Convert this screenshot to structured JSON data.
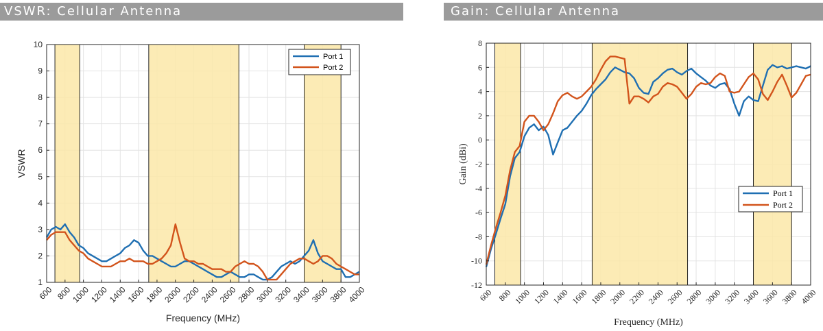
{
  "chart_data": [
    {
      "type": "line",
      "title": "VSWR: Cellular Antenna",
      "xlabel": "Frequency (MHz)",
      "ylabel": "VSWR",
      "xlim": [
        600,
        4000
      ],
      "ylim": [
        1,
        10
      ],
      "xticks": [
        600,
        800,
        1000,
        1200,
        1400,
        1600,
        1800,
        2000,
        2200,
        2400,
        2600,
        2800,
        3000,
        3200,
        3400,
        3600,
        3800,
        4000
      ],
      "yticks": [
        1,
        2,
        3,
        4,
        5,
        6,
        7,
        8,
        9,
        10
      ],
      "grid": true,
      "legend_position": "top-right",
      "bands": [
        [
          690,
          960
        ],
        [
          1710,
          2690
        ],
        [
          3400,
          3800
        ]
      ],
      "band_color": "#fbe7a8",
      "series": [
        {
          "name": "Port 1",
          "color": "#1f6fb2",
          "x": [
            600,
            650,
            700,
            750,
            800,
            850,
            900,
            950,
            1000,
            1050,
            1100,
            1150,
            1200,
            1250,
            1300,
            1350,
            1400,
            1450,
            1500,
            1550,
            1600,
            1650,
            1700,
            1750,
            1800,
            1850,
            1900,
            1950,
            2000,
            2050,
            2100,
            2150,
            2200,
            2250,
            2300,
            2350,
            2400,
            2450,
            2500,
            2550,
            2600,
            2650,
            2700,
            2750,
            2800,
            2850,
            2900,
            2950,
            3000,
            3050,
            3100,
            3150,
            3200,
            3250,
            3300,
            3350,
            3400,
            3450,
            3500,
            3550,
            3600,
            3650,
            3700,
            3750,
            3800,
            3850,
            3900,
            3950,
            4000
          ],
          "y": [
            2.7,
            3.0,
            3.1,
            3.0,
            3.2,
            2.9,
            2.7,
            2.4,
            2.3,
            2.1,
            2.0,
            1.9,
            1.8,
            1.8,
            1.9,
            2.0,
            2.1,
            2.3,
            2.4,
            2.6,
            2.5,
            2.2,
            2.0,
            2.0,
            1.9,
            1.8,
            1.7,
            1.6,
            1.6,
            1.7,
            1.8,
            1.8,
            1.7,
            1.6,
            1.5,
            1.4,
            1.3,
            1.2,
            1.2,
            1.3,
            1.4,
            1.3,
            1.2,
            1.2,
            1.3,
            1.3,
            1.2,
            1.1,
            1.1,
            1.2,
            1.4,
            1.6,
            1.7,
            1.8,
            1.7,
            1.8,
            2.0,
            2.2,
            2.6,
            2.1,
            1.8,
            1.7,
            1.6,
            1.5,
            1.5,
            1.2,
            1.2,
            1.3,
            1.4
          ]
        },
        {
          "name": "Port 2",
          "color": "#d2541c",
          "x": [
            600,
            650,
            700,
            750,
            800,
            850,
            900,
            950,
            1000,
            1050,
            1100,
            1150,
            1200,
            1250,
            1300,
            1350,
            1400,
            1450,
            1500,
            1550,
            1600,
            1650,
            1700,
            1750,
            1800,
            1850,
            1900,
            1950,
            2000,
            2050,
            2100,
            2150,
            2200,
            2250,
            2300,
            2350,
            2400,
            2450,
            2500,
            2550,
            2600,
            2650,
            2700,
            2750,
            2800,
            2850,
            2900,
            2950,
            3000,
            3050,
            3100,
            3150,
            3200,
            3250,
            3300,
            3350,
            3400,
            3450,
            3500,
            3550,
            3600,
            3650,
            3700,
            3750,
            3800,
            3850,
            3900,
            3950,
            4000
          ],
          "y": [
            2.6,
            2.8,
            2.9,
            2.9,
            2.9,
            2.6,
            2.4,
            2.2,
            2.1,
            1.9,
            1.8,
            1.7,
            1.6,
            1.6,
            1.6,
            1.7,
            1.8,
            1.8,
            1.9,
            1.8,
            1.8,
            1.8,
            1.7,
            1.7,
            1.8,
            1.9,
            2.1,
            2.4,
            3.2,
            2.5,
            1.9,
            1.8,
            1.8,
            1.7,
            1.7,
            1.6,
            1.5,
            1.5,
            1.5,
            1.4,
            1.4,
            1.6,
            1.7,
            1.8,
            1.7,
            1.7,
            1.6,
            1.4,
            1.1,
            1.1,
            1.1,
            1.3,
            1.5,
            1.7,
            1.8,
            1.9,
            1.9,
            1.8,
            1.7,
            1.8,
            2.0,
            2.0,
            1.9,
            1.7,
            1.6,
            1.5,
            1.4,
            1.3,
            1.3
          ]
        }
      ]
    },
    {
      "type": "line",
      "title": "Gain: Cellular Antenna",
      "xlabel": "Frequency (MHz)",
      "ylabel": "Gain (dBi)",
      "xlim": [
        600,
        4000
      ],
      "ylim": [
        -12,
        8
      ],
      "xticks": [
        600,
        800,
        1000,
        1200,
        1400,
        1600,
        1800,
        2000,
        2200,
        2400,
        2600,
        2800,
        3000,
        3200,
        3400,
        3600,
        3800,
        4000
      ],
      "yticks": [
        -12,
        -10,
        -8,
        -6,
        -4,
        -2,
        0,
        2,
        4,
        6,
        8
      ],
      "grid": true,
      "legend_position": "center-right",
      "bands": [
        [
          690,
          960
        ],
        [
          1710,
          2710
        ],
        [
          3400,
          3800
        ]
      ],
      "band_color": "#fbe7a8",
      "series": [
        {
          "name": "Port 1",
          "color": "#1f6fb2",
          "x": [
            600,
            650,
            700,
            750,
            800,
            850,
            900,
            950,
            1000,
            1050,
            1100,
            1150,
            1200,
            1250,
            1300,
            1350,
            1400,
            1450,
            1500,
            1550,
            1600,
            1650,
            1700,
            1750,
            1800,
            1850,
            1900,
            1950,
            2000,
            2050,
            2100,
            2150,
            2200,
            2250,
            2300,
            2350,
            2400,
            2450,
            2500,
            2550,
            2600,
            2650,
            2700,
            2750,
            2800,
            2850,
            2900,
            2950,
            3000,
            3050,
            3100,
            3150,
            3200,
            3250,
            3300,
            3350,
            3400,
            3450,
            3500,
            3550,
            3600,
            3650,
            3700,
            3750,
            3800,
            3850,
            3900,
            3950,
            4000
          ],
          "y": [
            -10.5,
            -9.0,
            -7.8,
            -6.5,
            -5.3,
            -3.0,
            -1.5,
            -1.0,
            0.3,
            1.0,
            1.3,
            0.8,
            1.1,
            0.4,
            -1.2,
            -0.2,
            0.8,
            1.0,
            1.5,
            2.0,
            2.4,
            3.0,
            3.7,
            4.2,
            4.6,
            5.0,
            5.6,
            6.0,
            5.8,
            5.6,
            5.5,
            5.1,
            4.3,
            3.9,
            3.8,
            4.8,
            5.1,
            5.5,
            5.8,
            5.9,
            5.6,
            5.4,
            5.7,
            5.9,
            5.5,
            5.2,
            4.9,
            4.5,
            4.3,
            4.6,
            4.7,
            4.2,
            3.0,
            2.0,
            3.2,
            3.6,
            3.3,
            3.2,
            4.5,
            5.8,
            6.2,
            6.0,
            6.1,
            5.9,
            6.0,
            6.1,
            6.0,
            5.9,
            6.1
          ]
        },
        {
          "name": "Port 2",
          "color": "#d2541c",
          "x": [
            600,
            650,
            700,
            750,
            800,
            850,
            900,
            950,
            1000,
            1050,
            1100,
            1150,
            1200,
            1250,
            1300,
            1350,
            1400,
            1450,
            1500,
            1550,
            1600,
            1650,
            1700,
            1750,
            1800,
            1850,
            1900,
            1950,
            2000,
            2050,
            2100,
            2150,
            2200,
            2250,
            2300,
            2350,
            2400,
            2450,
            2500,
            2550,
            2600,
            2650,
            2700,
            2750,
            2800,
            2850,
            2900,
            2950,
            3000,
            3050,
            3100,
            3150,
            3200,
            3250,
            3300,
            3350,
            3400,
            3450,
            3500,
            3550,
            3600,
            3650,
            3700,
            3750,
            3800,
            3850,
            3900,
            3950,
            4000
          ],
          "y": [
            -10.3,
            -8.7,
            -7.3,
            -6.0,
            -4.6,
            -2.5,
            -1.0,
            -0.5,
            1.5,
            2.0,
            2.0,
            1.5,
            0.8,
            1.3,
            2.2,
            3.2,
            3.7,
            3.9,
            3.6,
            3.4,
            3.6,
            4.0,
            4.4,
            5.0,
            5.8,
            6.5,
            6.9,
            6.9,
            6.8,
            6.7,
            3.0,
            3.6,
            3.6,
            3.4,
            3.1,
            3.6,
            3.8,
            4.4,
            4.7,
            4.6,
            4.4,
            3.9,
            3.4,
            3.8,
            4.4,
            4.7,
            4.6,
            4.7,
            5.2,
            5.5,
            5.3,
            4.0,
            3.9,
            4.0,
            4.6,
            5.2,
            5.5,
            5.0,
            3.8,
            3.3,
            4.0,
            4.8,
            5.4,
            4.5,
            3.5,
            3.9,
            4.6,
            5.3,
            5.4
          ]
        }
      ]
    }
  ]
}
